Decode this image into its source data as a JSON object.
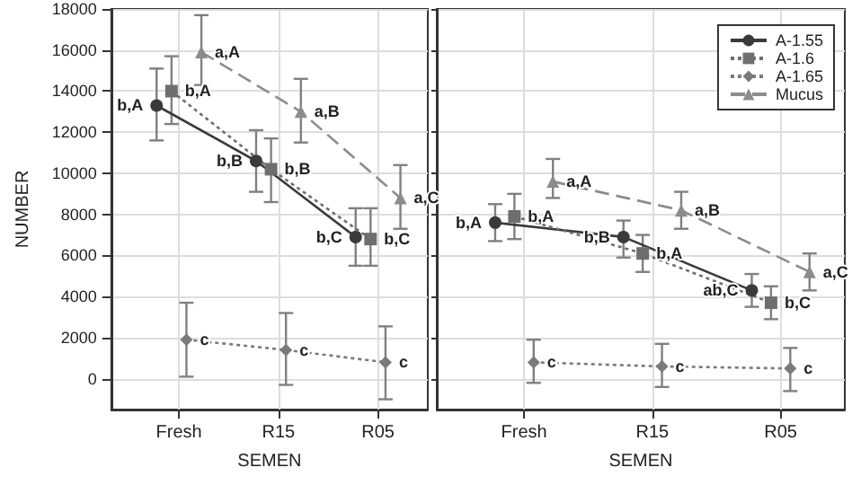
{
  "chart_data": [
    {
      "type": "line",
      "xlabel": "SEMEN",
      "ylabel": "NUMBER",
      "categories": [
        "Fresh",
        "R15",
        "R05"
      ],
      "ylim": [
        -1500,
        18000
      ],
      "yticks": [
        0,
        2000,
        4000,
        6000,
        8000,
        10000,
        12000,
        14000,
        16000,
        18000
      ],
      "grid": true,
      "tick_labels": "xy",
      "series": [
        {
          "color": "#3a3a3a",
          "marker": "circle",
          "line_style": "solid",
          "values": [
            13300,
            10600,
            6900
          ],
          "errors": [
            [
              11600,
              15100
            ],
            [
              9100,
              12100
            ],
            [
              5500,
              8300
            ]
          ],
          "value_labels": [
            "b,A",
            "b,B",
            "b,C"
          ]
        },
        {
          "color": "#6e6e6e",
          "marker": "square",
          "line_style": "dotted",
          "values": [
            14000,
            10200,
            6800
          ],
          "errors": [
            [
              12400,
              15700
            ],
            [
              8600,
              11700
            ],
            [
              5500,
              8300
            ]
          ],
          "value_labels": [
            "b,A",
            "b,B",
            "b,C"
          ]
        },
        {
          "color": "#7a7a7a",
          "marker": "diamond",
          "line_style": "dotted",
          "values": [
            1900,
            1400,
            800
          ],
          "errors": [
            [
              100,
              3700
            ],
            [
              -300,
              3200
            ],
            [
              -1000,
              2550
            ]
          ],
          "value_labels": [
            "c",
            "c",
            "c"
          ]
        },
        {
          "color": "#8c8c8c",
          "marker": "triangle",
          "line_style": "dashed",
          "values": [
            15900,
            13000,
            8800
          ],
          "errors": [
            [
              14300,
              17700
            ],
            [
              11500,
              14600
            ],
            [
              7300,
              10400
            ]
          ],
          "value_labels": [
            "a,A",
            "a,B",
            "a,C"
          ]
        }
      ]
    },
    {
      "type": "line",
      "xlabel": "SEMEN",
      "categories": [
        "Fresh",
        "R15",
        "R05"
      ],
      "ylim": [
        -1500,
        18000
      ],
      "yticks": [
        0,
        2000,
        4000,
        6000,
        8000,
        10000,
        12000,
        14000,
        16000,
        18000
      ],
      "grid": true,
      "tick_labels": "x",
      "legend": "top right",
      "series": [
        {
          "name": "A-1.55",
          "color": "#3a3a3a",
          "marker": "circle",
          "line_style": "solid",
          "values": [
            7600,
            6900,
            4300
          ],
          "errors": [
            [
              6700,
              8500
            ],
            [
              5900,
              7700
            ],
            [
              3500,
              5100
            ]
          ],
          "value_labels": [
            "b,A",
            "b,B",
            "ab,C"
          ]
        },
        {
          "name": "A-1.6",
          "color": "#6e6e6e",
          "marker": "square",
          "line_style": "dotted",
          "values": [
            7900,
            6100,
            3700
          ],
          "errors": [
            [
              6800,
              9000
            ],
            [
              5200,
              7000
            ],
            [
              2900,
              4500
            ]
          ],
          "value_labels": [
            "b,A",
            "b,A",
            "b,C"
          ]
        },
        {
          "name": "A-1.65",
          "color": "#7a7a7a",
          "marker": "diamond",
          "line_style": "dotted",
          "values": [
            800,
            600,
            500
          ],
          "errors": [
            [
              -200,
              1900
            ],
            [
              -400,
              1700
            ],
            [
              -600,
              1500
            ]
          ],
          "value_labels": [
            "c",
            "c",
            "c"
          ]
        },
        {
          "name": "Mucus",
          "color": "#8c8c8c",
          "marker": "triangle",
          "line_style": "dashed",
          "values": [
            9600,
            8200,
            5200
          ],
          "errors": [
            [
              8800,
              10700
            ],
            [
              7300,
              9100
            ],
            [
              4300,
              6100
            ]
          ],
          "value_labels": [
            "a,A",
            "a,B",
            "a,C"
          ]
        }
      ]
    }
  ]
}
